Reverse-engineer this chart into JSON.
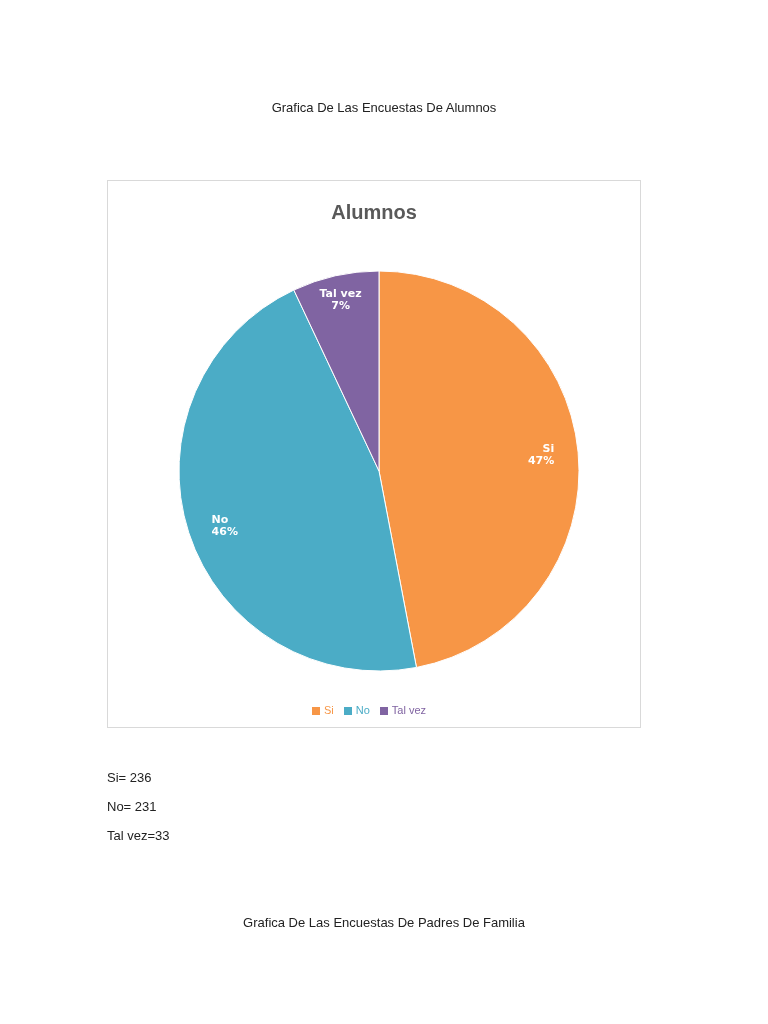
{
  "chart_data": {
    "type": "pie",
    "title": "Alumnos",
    "categories": [
      "Si",
      "No",
      "Tal vez"
    ],
    "values": [
      47,
      46,
      7
    ],
    "colors": [
      "#f79646",
      "#4bacc6",
      "#8064a2"
    ],
    "value_labels": [
      "47%",
      "46%",
      "7%"
    ],
    "legend": "bottom",
    "annotations": [
      "Grafica De Las Encuestas De Alumnos",
      "Si= 236",
      "No= 231",
      "Tal vez=33",
      "Grafica De Las Encuestas De Padres De Familia"
    ]
  }
}
